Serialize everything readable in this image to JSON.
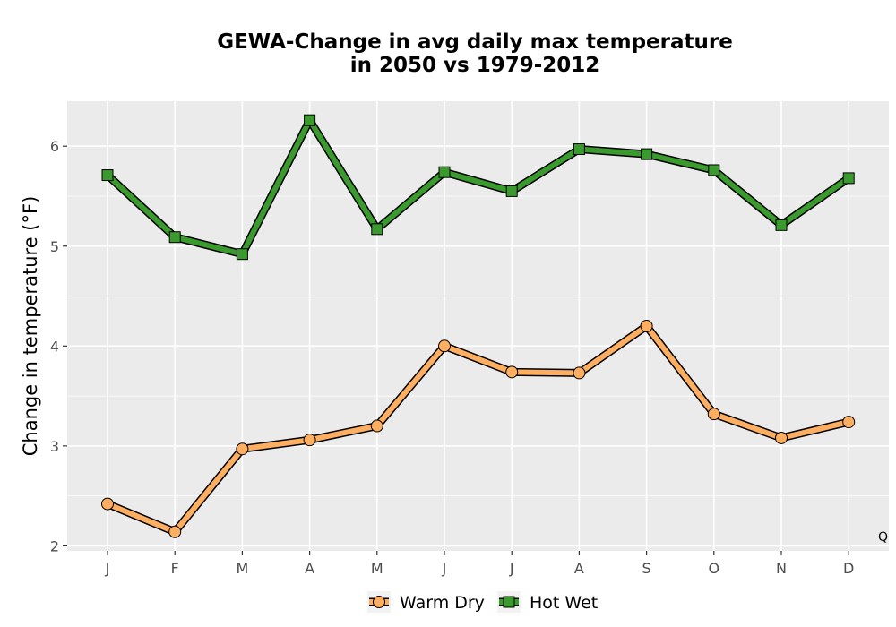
{
  "corner_label": "Q",
  "colors": {
    "panel_bg": "#ebebeb",
    "grid": "#ffffff",
    "warm_dry_fill": "#fdae61",
    "hot_wet_fill": "#3a9a2e",
    "outline": "#000000"
  },
  "chart_data": {
    "type": "line",
    "title_lines": [
      "GEWA-Change in avg daily max temperature",
      "in 2050 vs 1979-2012"
    ],
    "xlabel": "",
    "ylabel": "Change in temperature (°F)",
    "categories": [
      "J",
      "F",
      "M",
      "A",
      "M",
      "J",
      "J",
      "A",
      "S",
      "O",
      "N",
      "D"
    ],
    "ylim": [
      1.95,
      6.45
    ],
    "yticks": [
      2,
      3,
      4,
      5,
      6
    ],
    "grid": true,
    "legend_position": "bottom",
    "series": [
      {
        "name": "Warm Dry",
        "marker": "circle",
        "color": "#fdae61",
        "values": [
          2.42,
          2.14,
          2.97,
          3.06,
          3.2,
          4.0,
          3.74,
          3.73,
          4.2,
          3.32,
          3.08,
          3.24
        ]
      },
      {
        "name": "Hot Wet",
        "marker": "square",
        "color": "#3a9a2e",
        "values": [
          5.71,
          5.09,
          4.92,
          6.26,
          5.17,
          5.74,
          5.55,
          5.97,
          5.92,
          5.76,
          5.21,
          5.68
        ]
      }
    ]
  }
}
